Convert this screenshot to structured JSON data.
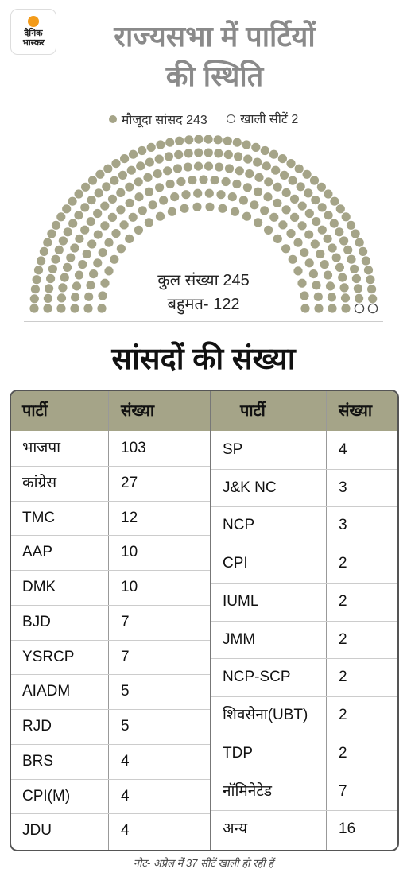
{
  "logo": {
    "line1": "दैनिक",
    "line2": "भास्कर"
  },
  "title": {
    "line1": "राज्यसभा में पार्टियों",
    "line2": "की स्थिति"
  },
  "legend": {
    "filled": "मौजूदा सांसद 243",
    "empty": "खाली सीटें 2"
  },
  "chart": {
    "total_label": "कुल संख्या 245",
    "majority_label": "बहुमत- 122",
    "total": 245,
    "filled": 243,
    "vacant": 2,
    "colors": {
      "filled": "#a5a488",
      "empty_stroke": "#444"
    }
  },
  "table_title": "सांसदों की संख्या",
  "table": {
    "headers": {
      "party": "पार्टी",
      "count": "संख्या"
    },
    "left": [
      {
        "party": "भाजपा",
        "count": "103"
      },
      {
        "party": "कांग्रेस",
        "count": "27"
      },
      {
        "party": "TMC",
        "count": "12"
      },
      {
        "party": "AAP",
        "count": "10"
      },
      {
        "party": "DMK",
        "count": "10"
      },
      {
        "party": "BJD",
        "count": "7"
      },
      {
        "party": "YSRCP",
        "count": "7"
      },
      {
        "party": "AIADM",
        "count": "5"
      },
      {
        "party": "RJD",
        "count": "5"
      },
      {
        "party": "BRS",
        "count": "4"
      },
      {
        "party": "CPI(M)",
        "count": "4"
      },
      {
        "party": "JDU",
        "count": "4"
      }
    ],
    "right": [
      {
        "party": "SP",
        "count": "4"
      },
      {
        "party": "J&K NC",
        "count": "3"
      },
      {
        "party": "NCP",
        "count": "3"
      },
      {
        "party": "CPI",
        "count": "2"
      },
      {
        "party": "IUML",
        "count": "2"
      },
      {
        "party": "JMM",
        "count": "2"
      },
      {
        "party": "NCP-SCP",
        "count": "2"
      },
      {
        "party": "शिवसेना(UBT)",
        "count": "2"
      },
      {
        "party": "TDP",
        "count": "2"
      },
      {
        "party": "नॉमिनेटेड",
        "count": "7"
      },
      {
        "party": "अन्य",
        "count": "16"
      }
    ]
  },
  "note": "नोट- अप्रैल में 37 सीटें खाली हो रही हैं"
}
